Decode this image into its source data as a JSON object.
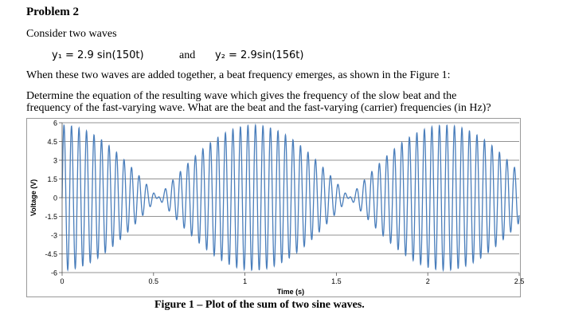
{
  "problem": {
    "title": "Problem 2",
    "intro": "Consider two waves",
    "equation1": "y₁ = 2.9 sin(150t)",
    "and_word": "and",
    "equation2": "y₂ = 2.9sin(156t)",
    "paragraph1": "When these two waves are added together, a beat frequency emerges, as shown in the Figure 1:",
    "paragraph2_line1": "Determine the equation of the resulting wave which gives the frequency of the slow beat and the",
    "paragraph2_line2": "frequency of the fast-varying wave. What are the beat and the fast-varying (carrier) frequencies (in Hz)?",
    "caption": "Figure 1 – Plot of the sum of two sine waves."
  },
  "chart_data": {
    "type": "line",
    "title": "",
    "xlabel": "Time (s)",
    "ylabel": "Voltage (V)",
    "xlim": [
      0,
      2.5
    ],
    "ylim": [
      -6,
      6
    ],
    "x_ticks": [
      0,
      0.5,
      1,
      1.5,
      2,
      2.5
    ],
    "x_tick_labels": [
      "0",
      "0.5",
      "1",
      "1.5",
      "2",
      "2.5"
    ],
    "y_ticks": [
      6,
      4.5,
      3,
      1.5,
      0,
      -1.5,
      -3,
      -4.5,
      -6
    ],
    "y_tick_labels": [
      "6",
      "4.5",
      "3",
      "1.5",
      "0",
      "-1.5",
      "-3",
      "-4.5",
      "-6"
    ],
    "grid": true,
    "series": [
      {
        "function": "2.9*sin(150t) + 2.9*sin(156t)",
        "color": "#4a7ebb"
      }
    ]
  }
}
